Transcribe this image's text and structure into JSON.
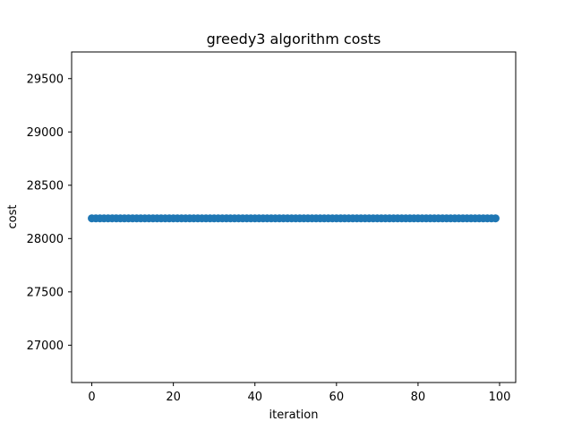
{
  "chart_data": {
    "type": "scatter",
    "title": "greedy3 algorithm costs",
    "xlabel": "iteration",
    "ylabel": "cost",
    "xlim": [
      -4.95,
      103.95
    ],
    "ylim": [
      26650,
      29750
    ],
    "xticks": [
      0,
      20,
      40,
      60,
      80,
      100
    ],
    "yticks": [
      27000,
      27500,
      28000,
      28500,
      29000,
      29500
    ],
    "grid": false,
    "series": [
      {
        "color": "#1f77b4",
        "x_start": 0,
        "x_end": 99,
        "x_step": 1,
        "y_constant": 28190
      }
    ]
  }
}
